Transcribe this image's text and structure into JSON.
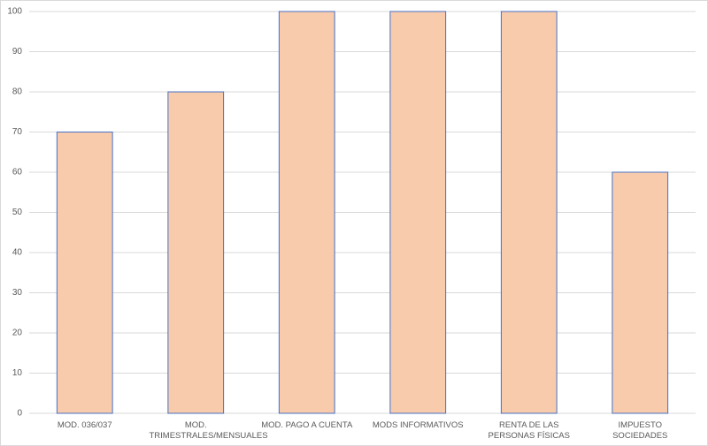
{
  "chart_data": {
    "type": "bar",
    "categories": [
      "MOD. 036/037",
      "MOD. TRIMESTRALES/MENSUALES",
      "MOD. PAGO A CUENTA",
      "MODS INFORMATIVOS",
      "RENTA DE LAS PERSONAS FÍSICAS",
      "IMPUESTO SOCIEDADES"
    ],
    "values": [
      70,
      80,
      100,
      100,
      100,
      60
    ],
    "color": "#f8cbad",
    "edge_color": "#4472c4",
    "ylim": [
      0,
      100
    ],
    "yticks": [
      0,
      10,
      20,
      30,
      40,
      50,
      60,
      70,
      80,
      90,
      100
    ],
    "grid": true
  }
}
